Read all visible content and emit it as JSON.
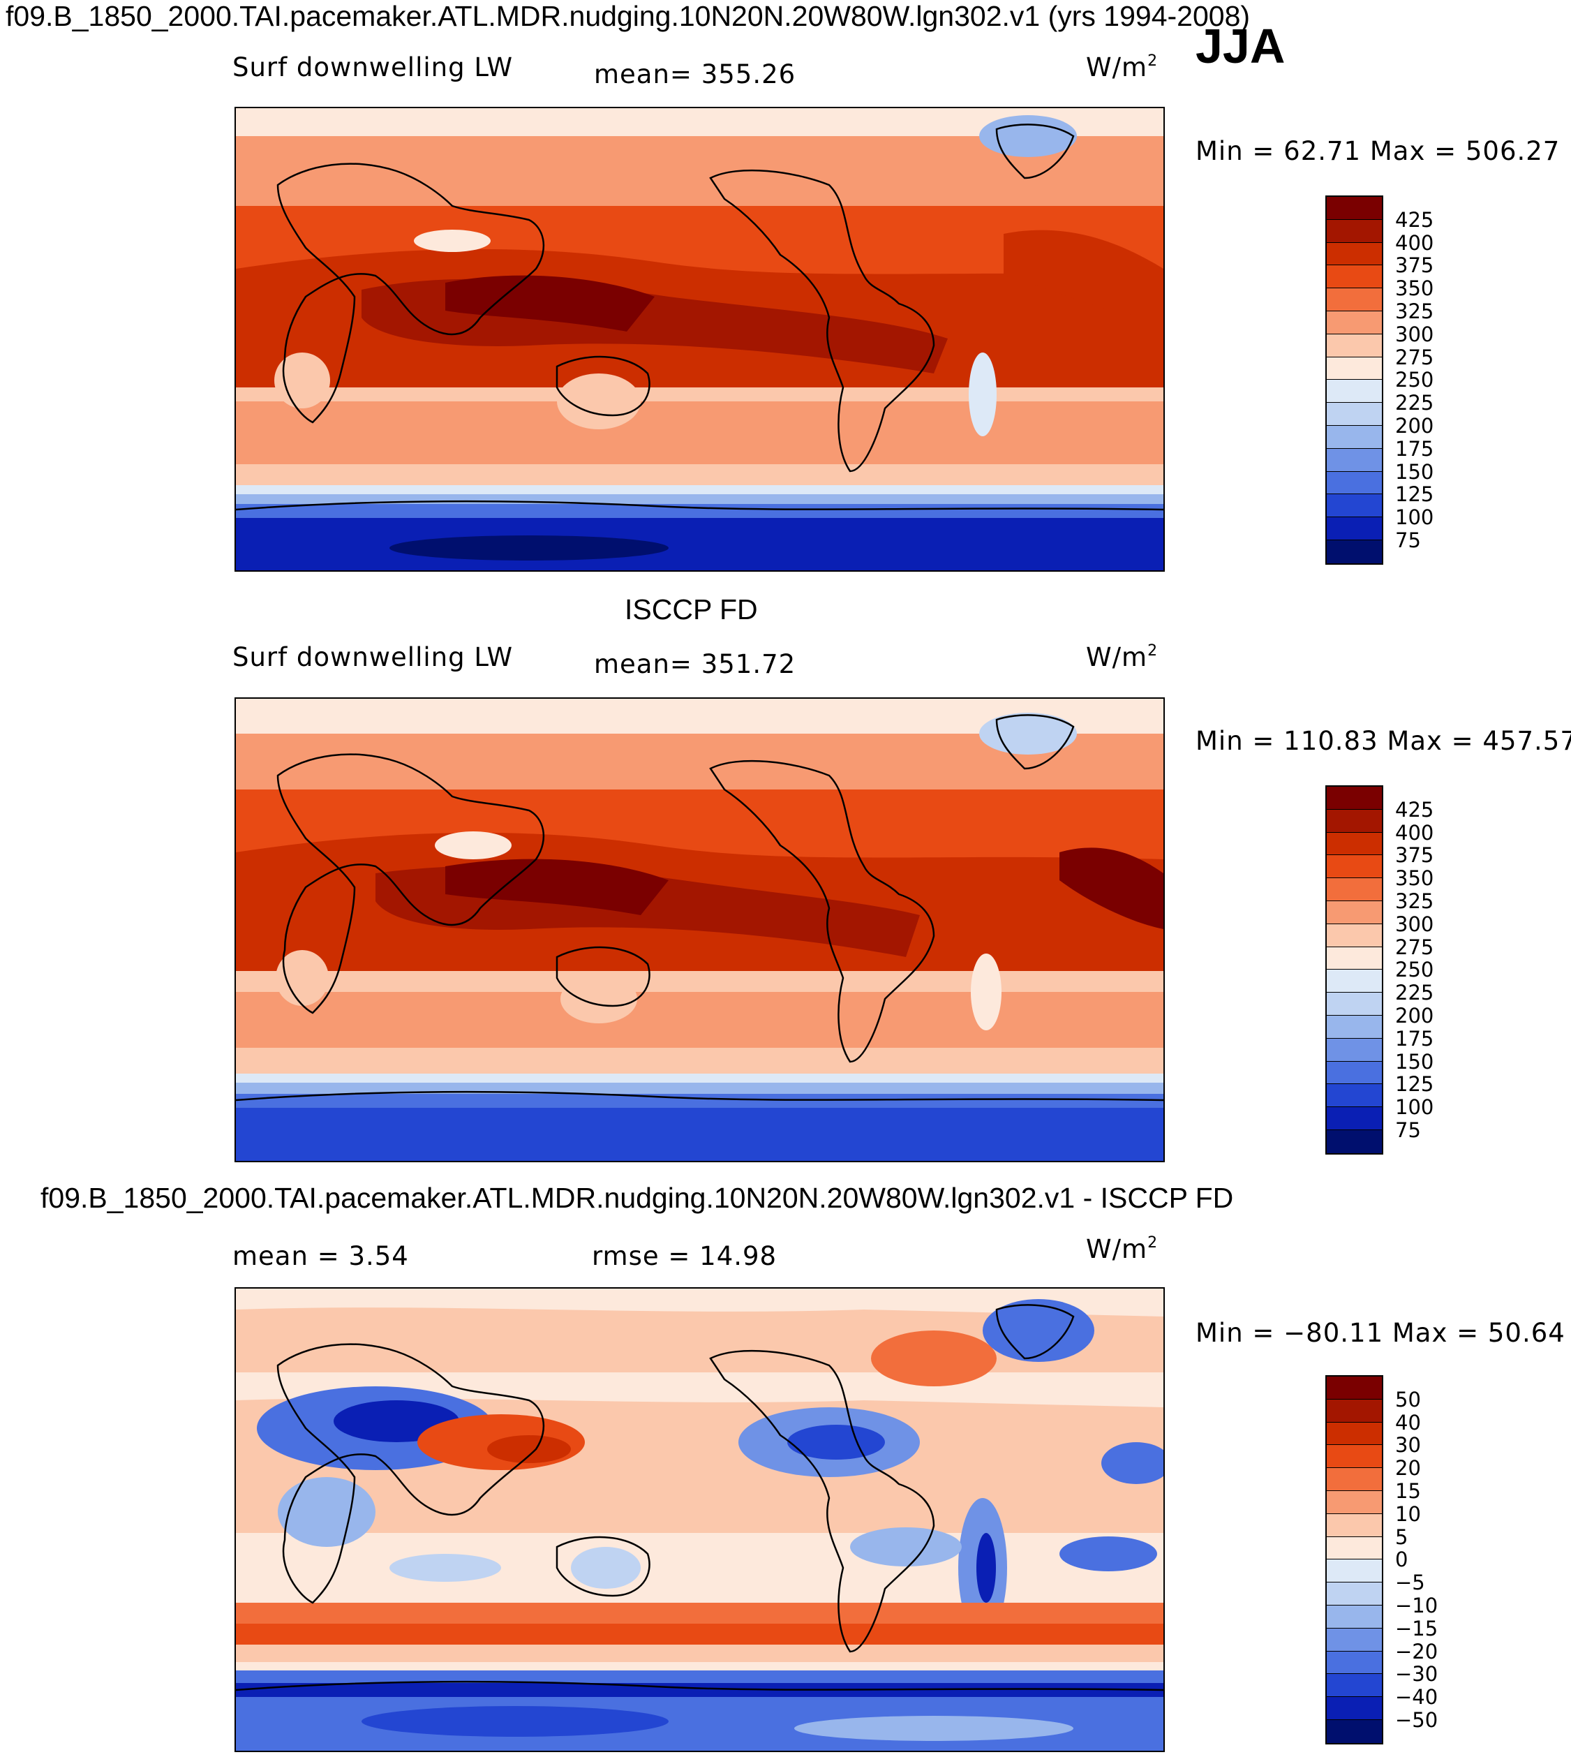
{
  "header": {
    "title": "f09.B_1850_2000.TAI.pacemaker.ATL.MDR.nudging.10N20N.20W80W.lgn302.v1 (yrs 1994-2008)",
    "season": "JJA"
  },
  "panels": [
    {
      "heading": "",
      "variable": "Surf downwelling LW",
      "stat_text": "mean= 355.26",
      "units_base": "W/m",
      "units_exp": "2",
      "minmax": "Min =   62.71  Max = 506.27",
      "legend_ticks": [
        "425",
        "400",
        "375",
        "350",
        "325",
        "300",
        "275",
        "250",
        "225",
        "200",
        "175",
        "150",
        "125",
        "100",
        "75"
      ]
    },
    {
      "heading": "ISCCP FD",
      "variable": "Surf downwelling LW",
      "stat_text": "mean= 351.72",
      "units_base": "W/m",
      "units_exp": "2",
      "minmax": "Min = 110.83  Max = 457.57",
      "legend_ticks": [
        "425",
        "400",
        "375",
        "350",
        "325",
        "300",
        "275",
        "250",
        "225",
        "200",
        "175",
        "150",
        "125",
        "100",
        "75"
      ]
    },
    {
      "heading": "f09.B_1850_2000.TAI.pacemaker.ATL.MDR.nudging.10N20N.20W80W.lgn302.v1 - ISCCP FD",
      "mean_text": "mean =    3.54",
      "rmse_text": "rmse =   14.98",
      "units_base": "W/m",
      "units_exp": "2",
      "minmax": "Min = −80.11  Max =   50.64",
      "legend_ticks": [
        "50",
        "40",
        "30",
        "20",
        "15",
        "10",
        "5",
        "0",
        "−5",
        "−10",
        "−15",
        "−20",
        "−30",
        "−40",
        "−50"
      ]
    }
  ],
  "colors": {
    "absolute_scale": [
      "#7a0000",
      "#a31600",
      "#cc2e00",
      "#e84a14",
      "#f26e3c",
      "#f79a72",
      "#fbc8ac",
      "#fde9dc",
      "#dde9f7",
      "#bfd3f2",
      "#98b6ec",
      "#6f92e6",
      "#4a70e0",
      "#2346d2",
      "#0a1fb4",
      "#000f6e"
    ],
    "difference_scale": [
      "#7a0000",
      "#a31600",
      "#cc2e00",
      "#e84a14",
      "#f26e3c",
      "#f79a72",
      "#fbc8ac",
      "#fde9dc",
      "#dde9f7",
      "#bfd3f2",
      "#98b6ec",
      "#6f92e6",
      "#4a70e0",
      "#2346d2",
      "#0a1fb4",
      "#000f6e"
    ]
  }
}
